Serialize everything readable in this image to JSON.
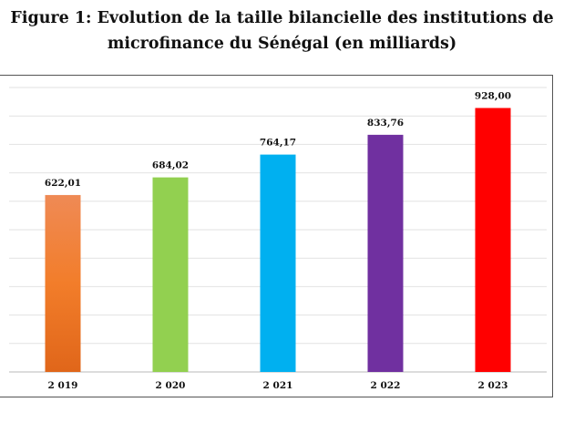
{
  "title_line1": "Figure 1: Evolution de la taille bilancielle des institutions de",
  "title_line2": "microfinance du Sénégal (en milliards)",
  "chart_data": {
    "type": "bar",
    "title": "Figure 1: Evolution de la taille bilancielle des institutions de microfinance du Sénégal (en milliards)",
    "categories": [
      "2 019",
      "2 020",
      "2 021",
      "2 022",
      "2 023"
    ],
    "values": [
      622.01,
      684.02,
      764.17,
      833.76,
      928.0
    ],
    "labels": [
      "622,01",
      "684,02",
      "764,17",
      "833,76",
      "928,00"
    ],
    "colors": [
      "#f07b2e",
      "#92d050",
      "#00b0f0",
      "#7030a0",
      "#ff0000"
    ],
    "ylim": [
      0,
      1000
    ],
    "grid_step": 100,
    "grid": true,
    "y_tick_labels_shown": false,
    "legend": "none"
  }
}
